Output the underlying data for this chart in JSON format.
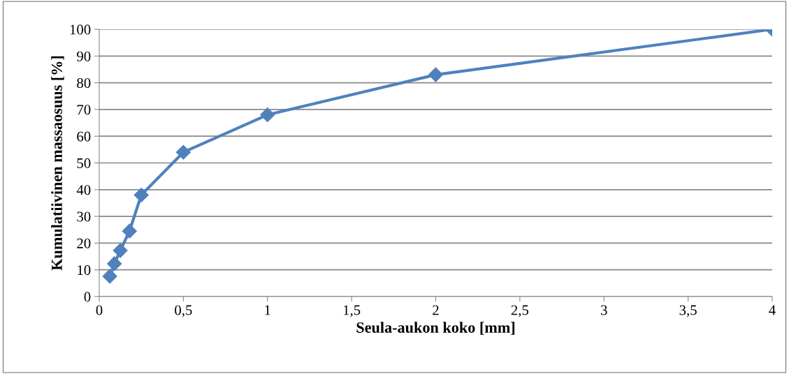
{
  "chart_data": {
    "type": "line",
    "xlabel": "Seula-aukon koko [mm]",
    "ylabel": "Kumulatiivinen massaosuus [%]",
    "x": [
      0.063,
      0.09,
      0.125,
      0.18,
      0.25,
      0.5,
      1,
      2,
      4
    ],
    "series": [
      {
        "color": "#4f81bd",
        "values": [
          7.6,
          12.3,
          17.2,
          24.5,
          38,
          54,
          68,
          83,
          100
        ]
      }
    ],
    "xlim": [
      0,
      4
    ],
    "xticks": [
      {
        "value": 0,
        "label": "0"
      },
      {
        "value": 0.5,
        "label": "0,5"
      },
      {
        "value": 1,
        "label": "1"
      },
      {
        "value": 1.5,
        "label": "1,5"
      },
      {
        "value": 2,
        "label": "2"
      },
      {
        "value": 2.5,
        "label": "2,5"
      },
      {
        "value": 3,
        "label": "3"
      },
      {
        "value": 3.5,
        "label": "3,5"
      },
      {
        "value": 4,
        "label": "4"
      }
    ],
    "ylim": [
      0,
      100
    ],
    "yticks": [
      0,
      10,
      20,
      30,
      40,
      50,
      60,
      70,
      80,
      90,
      100
    ],
    "grid": "y",
    "marker": "diamond",
    "line_style": "solid",
    "legend": false
  }
}
